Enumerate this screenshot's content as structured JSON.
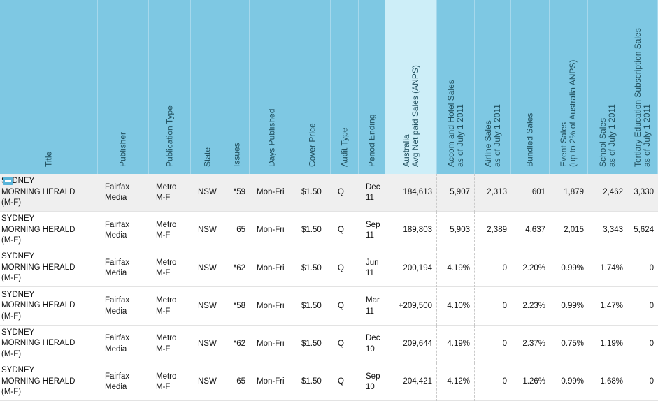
{
  "columns": [
    {
      "key": "title",
      "label": "Title"
    },
    {
      "key": "publisher",
      "label": "Publisher"
    },
    {
      "key": "pubtype",
      "label": "Publication Type"
    },
    {
      "key": "state",
      "label": "State"
    },
    {
      "key": "issues",
      "label": "Issues"
    },
    {
      "key": "days",
      "label": "Days Published"
    },
    {
      "key": "price",
      "label": "Cover Price"
    },
    {
      "key": "audit",
      "label": "Audit Type"
    },
    {
      "key": "period",
      "label": "Period Ending"
    },
    {
      "key": "anps",
      "label": "Australia\nAvg Net paid Sales (ANPS)"
    },
    {
      "key": "accom",
      "label": "Accom and Hotel Sales\nas of July 1 2011"
    },
    {
      "key": "airline",
      "label": "Airline Sales\nas of July 1 2011"
    },
    {
      "key": "bundled",
      "label": "Bundled Sales"
    },
    {
      "key": "event",
      "label": "Event Sales\n(up to 2% of Australia ANPS)"
    },
    {
      "key": "school",
      "label": "School Sales\nas of July 1 2011"
    },
    {
      "key": "tertiary",
      "label": "Tertiary Education Subscription Sales\nas of July 1 2011"
    }
  ],
  "rows": [
    {
      "selected": true,
      "title": [
        "SYDNEY",
        "MORNING HERALD",
        "(M-F)"
      ],
      "publisher": [
        "Fairfax",
        "Media"
      ],
      "pubtype": [
        "Metro",
        "M-F"
      ],
      "state": "NSW",
      "issues": "*59",
      "days": "Mon-Fri",
      "price": "$1.50",
      "audit": "Q",
      "period": [
        "Dec",
        "11"
      ],
      "anps": "184,613",
      "accom": "5,907",
      "airline": "2,313",
      "bundled": "601",
      "event": "1,879",
      "school": "2,462",
      "tertiary": "3,330"
    },
    {
      "selected": false,
      "title": [
        "SYDNEY",
        "MORNING HERALD",
        "(M-F)"
      ],
      "publisher": [
        "Fairfax",
        "Media"
      ],
      "pubtype": [
        "Metro",
        "M-F"
      ],
      "state": "NSW",
      "issues": "65",
      "days": "Mon-Fri",
      "price": "$1.50",
      "audit": "Q",
      "period": [
        "Sep",
        "11"
      ],
      "anps": "189,803",
      "accom": "5,903",
      "airline": "2,389",
      "bundled": "4,637",
      "event": "2,015",
      "school": "3,343",
      "tertiary": "5,624"
    },
    {
      "selected": false,
      "title": [
        "SYDNEY",
        "MORNING HERALD",
        "(M-F)"
      ],
      "publisher": [
        "Fairfax",
        "Media"
      ],
      "pubtype": [
        "Metro",
        "M-F"
      ],
      "state": "NSW",
      "issues": "*62",
      "days": "Mon-Fri",
      "price": "$1.50",
      "audit": "Q",
      "period": [
        "Jun",
        "11"
      ],
      "anps": "200,194",
      "accom": "4.19%",
      "airline": "0",
      "bundled": "2.20%",
      "event": "0.99%",
      "school": "1.74%",
      "tertiary": "0"
    },
    {
      "selected": false,
      "title": [
        "SYDNEY",
        "MORNING HERALD",
        "(M-F)"
      ],
      "publisher": [
        "Fairfax",
        "Media"
      ],
      "pubtype": [
        "Metro",
        "M-F"
      ],
      "state": "NSW",
      "issues": "*58",
      "days": "Mon-Fri",
      "price": "$1.50",
      "audit": "Q",
      "period": [
        "Mar",
        "11"
      ],
      "anps": "+209,500",
      "accom": "4.10%",
      "airline": "0",
      "bundled": "2.23%",
      "event": "0.99%",
      "school": "1.47%",
      "tertiary": "0"
    },
    {
      "selected": false,
      "title": [
        "SYDNEY",
        "MORNING HERALD",
        "(M-F)"
      ],
      "publisher": [
        "Fairfax",
        "Media"
      ],
      "pubtype": [
        "Metro",
        "M-F"
      ],
      "state": "NSW",
      "issues": "*62",
      "days": "Mon-Fri",
      "price": "$1.50",
      "audit": "Q",
      "period": [
        "Dec",
        "10"
      ],
      "anps": "209,644",
      "accom": "4.19%",
      "airline": "0",
      "bundled": "2.37%",
      "event": "0.75%",
      "school": "1.19%",
      "tertiary": "0"
    },
    {
      "selected": false,
      "title": [
        "SYDNEY",
        "MORNING HERALD",
        "(M-F)"
      ],
      "publisher": [
        "Fairfax",
        "Media"
      ],
      "pubtype": [
        "Metro",
        "M-F"
      ],
      "state": "NSW",
      "issues": "65",
      "days": "Mon-Fri",
      "price": "$1.50",
      "audit": "Q",
      "period": [
        "Sep",
        "10"
      ],
      "anps": "204,421",
      "accom": "4.12%",
      "airline": "0",
      "bundled": "1.26%",
      "event": "0.99%",
      "school": "1.68%",
      "tertiary": "0"
    }
  ]
}
